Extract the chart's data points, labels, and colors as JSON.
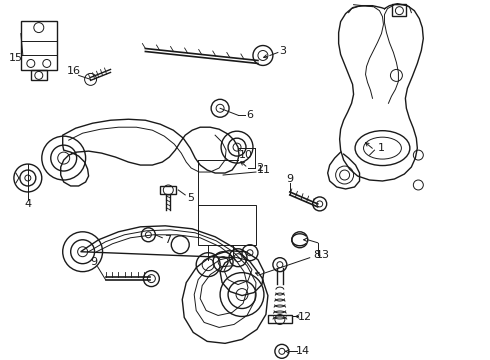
{
  "bg_color": "#ffffff",
  "line_color": "#1a1a1a",
  "fig_width": 4.9,
  "fig_height": 3.6,
  "dpi": 100
}
